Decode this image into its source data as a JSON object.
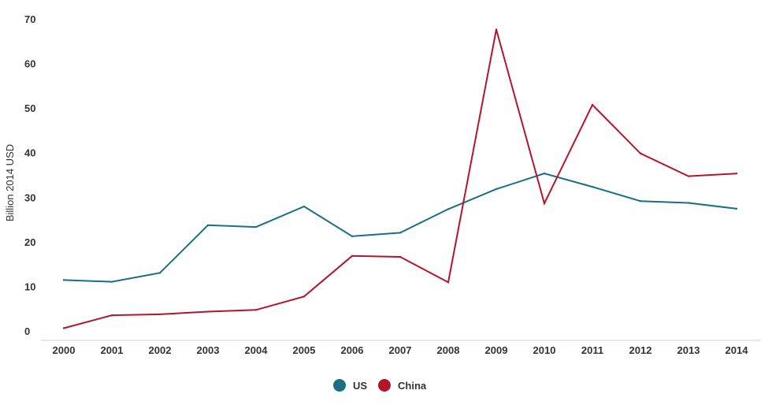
{
  "chart_data": {
    "type": "line",
    "ylabel": "Billion 2014 USD",
    "xlabel": "",
    "categories": [
      "2000",
      "2001",
      "2002",
      "2003",
      "2004",
      "2005",
      "2006",
      "2007",
      "2008",
      "2009",
      "2010",
      "2011",
      "2012",
      "2013",
      "2014"
    ],
    "ylim": [
      0,
      70
    ],
    "yticks": [
      0,
      10,
      20,
      30,
      40,
      50,
      60,
      70
    ],
    "grid": false,
    "legend_position": "bottom-center",
    "series": [
      {
        "name": "US",
        "color": "#1a6f84",
        "values": [
          11.6,
          11.2,
          13.2,
          23.9,
          23.5,
          28.1,
          21.4,
          22.2,
          27.5,
          32.0,
          35.5,
          32.5,
          29.3,
          28.9,
          27.6
        ]
      },
      {
        "name": "China",
        "color": "#b5152b",
        "values": [
          0.8,
          3.7,
          3.9,
          4.5,
          4.9,
          7.9,
          17.0,
          16.8,
          11.1,
          67.8,
          28.8,
          50.9,
          40.0,
          34.9,
          35.5
        ]
      }
    ]
  }
}
